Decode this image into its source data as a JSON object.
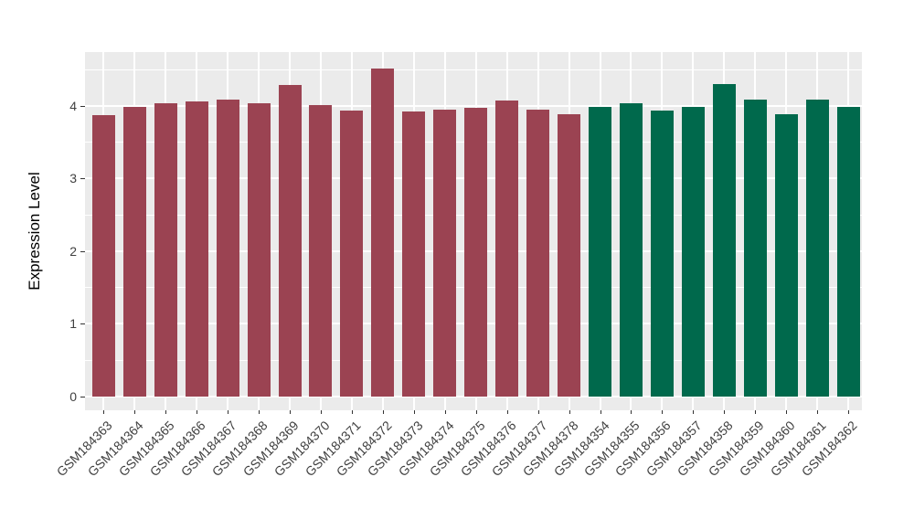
{
  "chart_data": {
    "type": "bar",
    "title": "",
    "xlabel": "",
    "ylabel": "Expression Level",
    "categories": [
      "GSM184363",
      "GSM184364",
      "GSM184365",
      "GSM184366",
      "GSM184367",
      "GSM184368",
      "GSM184369",
      "GSM184370",
      "GSM184371",
      "GSM184372",
      "GSM184373",
      "GSM184374",
      "GSM184375",
      "GSM184376",
      "GSM184377",
      "GSM184378",
      "GSM184354",
      "GSM184355",
      "GSM184356",
      "GSM184357",
      "GSM184358",
      "GSM184359",
      "GSM184360",
      "GSM184361",
      "GSM184362"
    ],
    "values": [
      3.87,
      3.98,
      4.04,
      4.06,
      4.08,
      4.04,
      4.29,
      4.01,
      3.93,
      4.51,
      3.92,
      3.95,
      3.97,
      4.07,
      3.95,
      3.88,
      3.98,
      4.04,
      3.93,
      3.98,
      4.3,
      4.09,
      3.89,
      4.09,
      3.98
    ],
    "bar_colors": [
      "#9B4352",
      "#9B4352",
      "#9B4352",
      "#9B4352",
      "#9B4352",
      "#9B4352",
      "#9B4352",
      "#9B4352",
      "#9B4352",
      "#9B4352",
      "#9B4352",
      "#9B4352",
      "#9B4352",
      "#9B4352",
      "#9B4352",
      "#9B4352",
      "#00694C",
      "#00694C",
      "#00694C",
      "#00694C",
      "#00694C",
      "#00694C",
      "#00694C",
      "#00694C",
      "#00694C"
    ],
    "group_colors": {
      "left_group": "#9B4352",
      "right_group": "#00694C"
    },
    "yticks": [
      0,
      1,
      2,
      3,
      4
    ],
    "yminorticks": [
      0.5,
      1.5,
      2.5,
      3.5,
      4.5
    ],
    "ylim": [
      -0.19,
      4.74
    ],
    "grid": true,
    "legend_position": "none",
    "panel_background": "#EBEBEB",
    "grid_color": "#FFFFFF"
  }
}
